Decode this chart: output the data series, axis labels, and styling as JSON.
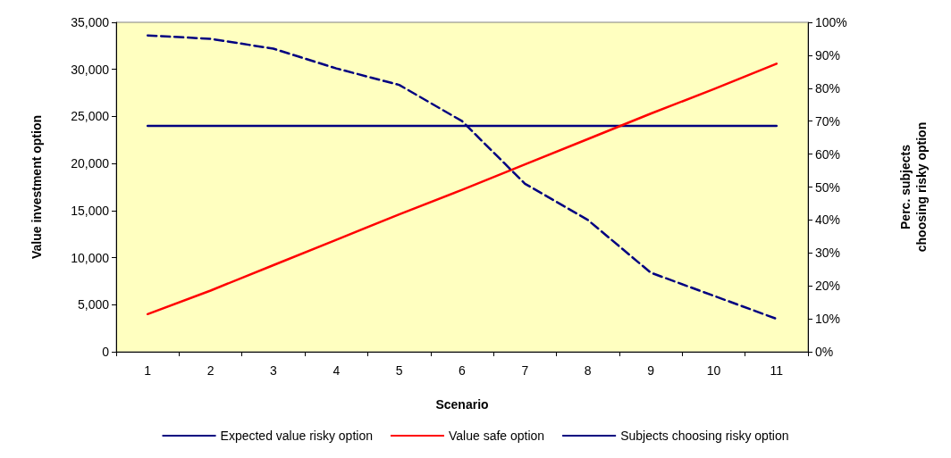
{
  "chart_data": {
    "type": "line",
    "xlabel": "Scenario",
    "ylabel": "Value investment option",
    "y2label": "Perc. subjects\nchoosing risky option",
    "categories": [
      "1",
      "2",
      "3",
      "4",
      "5",
      "6",
      "7",
      "8",
      "9",
      "10",
      "11"
    ],
    "series": [
      {
        "name": "Expected value risky option",
        "color": "#000080",
        "values": [
          24000,
          24000,
          24000,
          24000,
          24000,
          24000,
          24000,
          24000,
          24000,
          24000,
          24000
        ],
        "line_style": "solid"
      },
      {
        "name": "Value safe option",
        "color": "#ff0000",
        "values": [
          4000,
          6500,
          9200,
          11900,
          14600,
          17200,
          19900,
          22600,
          25300,
          27900,
          30600
        ],
        "line_style": "solid"
      },
      {
        "name": "Subjects choosing risky option",
        "color": "#000080",
        "values": [
          96,
          95,
          92,
          86,
          81,
          70,
          51,
          40,
          24,
          17,
          10
        ],
        "axis": "y2",
        "line_style": "dashed"
      }
    ],
    "ylim": [
      0,
      35000
    ],
    "yticks": [
      {
        "value": 0,
        "label": "0"
      },
      {
        "value": 5000,
        "label": "5,000"
      },
      {
        "value": 10000,
        "label": "10,000"
      },
      {
        "value": 15000,
        "label": "15,000"
      },
      {
        "value": 20000,
        "label": "20,000"
      },
      {
        "value": 25000,
        "label": "25,000"
      },
      {
        "value": 30000,
        "label": "30,000"
      },
      {
        "value": 35000,
        "label": "35,000"
      }
    ],
    "y2lim": [
      0,
      100
    ],
    "y2ticks": [
      {
        "value": 0,
        "label": "0%"
      },
      {
        "value": 10,
        "label": "10%"
      },
      {
        "value": 20,
        "label": "20%"
      },
      {
        "value": 30,
        "label": "30%"
      },
      {
        "value": 40,
        "label": "40%"
      },
      {
        "value": 50,
        "label": "50%"
      },
      {
        "value": 60,
        "label": "60%"
      },
      {
        "value": 70,
        "label": "70%"
      },
      {
        "value": 80,
        "label": "80%"
      },
      {
        "value": 90,
        "label": "90%"
      },
      {
        "value": 100,
        "label": "100%"
      }
    ],
    "grid": false,
    "legend": "bottom",
    "marker": "none"
  }
}
